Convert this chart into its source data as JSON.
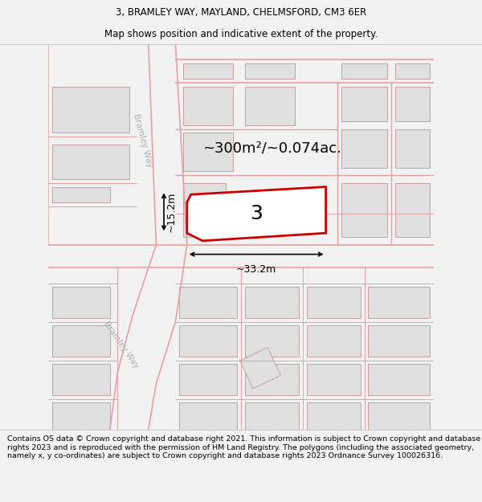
{
  "title_line1": "3, BRAMLEY WAY, MAYLAND, CHELMSFORD, CM3 6ER",
  "title_line2": "Map shows position and indicative extent of the property.",
  "area_label": "~300m²/~0.074ac.",
  "property_number": "3",
  "dim_width": "~33.2m",
  "dim_height": "~15.2m",
  "road_label_upper": "Bramley Way",
  "road_label_lower": "Bramley Way",
  "footer_text": "Contains OS data © Crown copyright and database right 2021. This information is subject to Crown copyright and database rights 2023 and is reproduced with the permission of HM Land Registry. The polygons (including the associated geometry, namely x, y co-ordinates) are subject to Crown copyright and database rights 2023 Ordnance Survey 100026316.",
  "bg_color": "#f2f2f2",
  "map_bg": "#ffffff",
  "road_line_color": "#e8a0a0",
  "building_fill": "#e0e0e0",
  "building_edge": "#c8a0a0",
  "property_outline_color": "#cc0000",
  "property_fill": "#ffffff",
  "title_fontsize": 8.5,
  "subtitle_fontsize": 8.5,
  "footer_fontsize": 6.8,
  "area_label_fontsize": 13,
  "number_fontsize": 18,
  "dim_fontsize": 9
}
